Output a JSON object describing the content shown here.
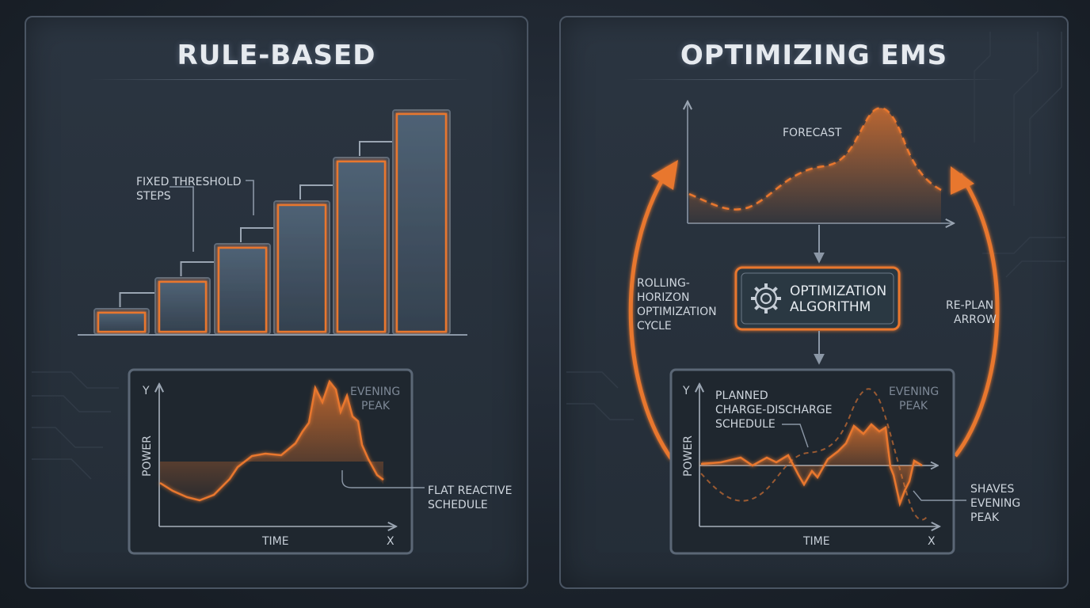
{
  "left_panel": {
    "title": "RULE-BASED",
    "steps_label": [
      "FIXED THRESHOLD",
      "STEPS"
    ],
    "chart": {
      "y_label": "Y",
      "x_label": "X",
      "power_label": "POWER",
      "time_label": "TIME",
      "peak_label": [
        "EVENING",
        "PEAK"
      ],
      "schedule_label": [
        "FLAT REACTIVE",
        "SCHEDULE"
      ]
    }
  },
  "right_panel": {
    "title": "OPTIMIZING EMS",
    "forecast_label": "FORECAST",
    "algorithm_label": [
      "OPTIMIZATION",
      "ALGORITHM"
    ],
    "cycle_label": [
      "ROLLING-",
      "HORIZON",
      "OPTIMIZATION",
      "CYCLE"
    ],
    "replan_label": [
      "RE-PLAN",
      "ARROW"
    ],
    "chart": {
      "y_label": "Y",
      "x_label": "X",
      "power_label": "POWER",
      "time_label": "TIME",
      "peak_label": [
        "EVENING",
        "PEAK"
      ],
      "planned_label": [
        "PLANNED",
        "CHARGE-DISCHARGE",
        "SCHEDULE"
      ],
      "shaves_label": [
        "SHAVES",
        "EVENING",
        "PEAK"
      ]
    }
  },
  "colors": {
    "accent": "#e8772e",
    "line": "#8b97a6",
    "panel_border": "#4a5563"
  },
  "icons": [
    "gear-icon",
    "arrow-icon"
  ]
}
